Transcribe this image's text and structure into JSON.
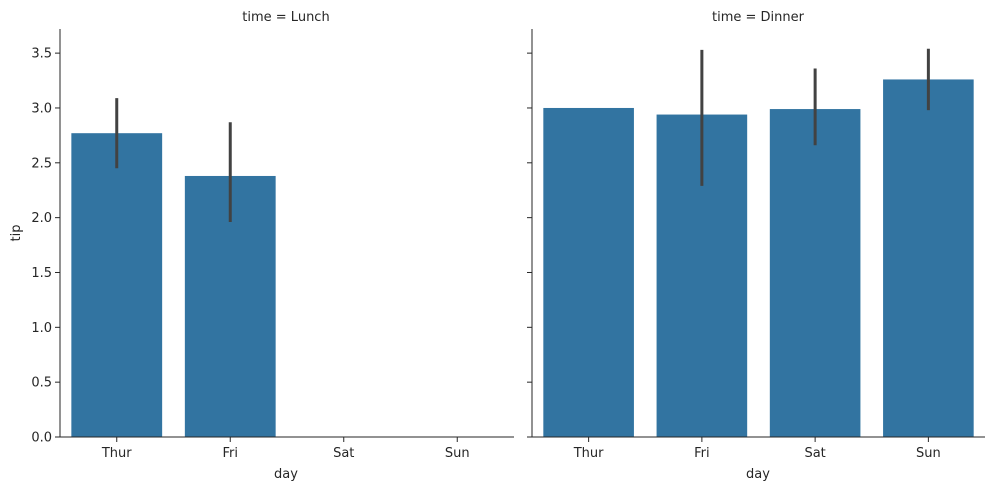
{
  "chart_data": {
    "type": "bar",
    "xlabel": "day",
    "ylabel": "tip",
    "categories": [
      "Thur",
      "Fri",
      "Sat",
      "Sun"
    ],
    "ylim": [
      0,
      3.72
    ],
    "yticks": [
      "0.0",
      "0.5",
      "1.0",
      "1.5",
      "2.0",
      "2.5",
      "3.0",
      "3.5"
    ],
    "grid": false,
    "bar_color": "#3274a1",
    "errorbar_color": "#424242",
    "facets": [
      {
        "title": "time = Lunch",
        "bars": [
          {
            "category": "Thur",
            "value": 2.77,
            "ci": [
              2.45,
              3.09
            ]
          },
          {
            "category": "Fri",
            "value": 2.38,
            "ci": [
              1.96,
              2.87
            ]
          }
        ]
      },
      {
        "title": "time = Dinner",
        "bars": [
          {
            "category": "Thur",
            "value": 3.0,
            "ci": null
          },
          {
            "category": "Fri",
            "value": 2.94,
            "ci": [
              2.29,
              3.53
            ]
          },
          {
            "category": "Sat",
            "value": 2.99,
            "ci": [
              2.66,
              3.36
            ]
          },
          {
            "category": "Sun",
            "value": 3.26,
            "ci": [
              2.98,
              3.54
            ]
          }
        ]
      }
    ]
  }
}
